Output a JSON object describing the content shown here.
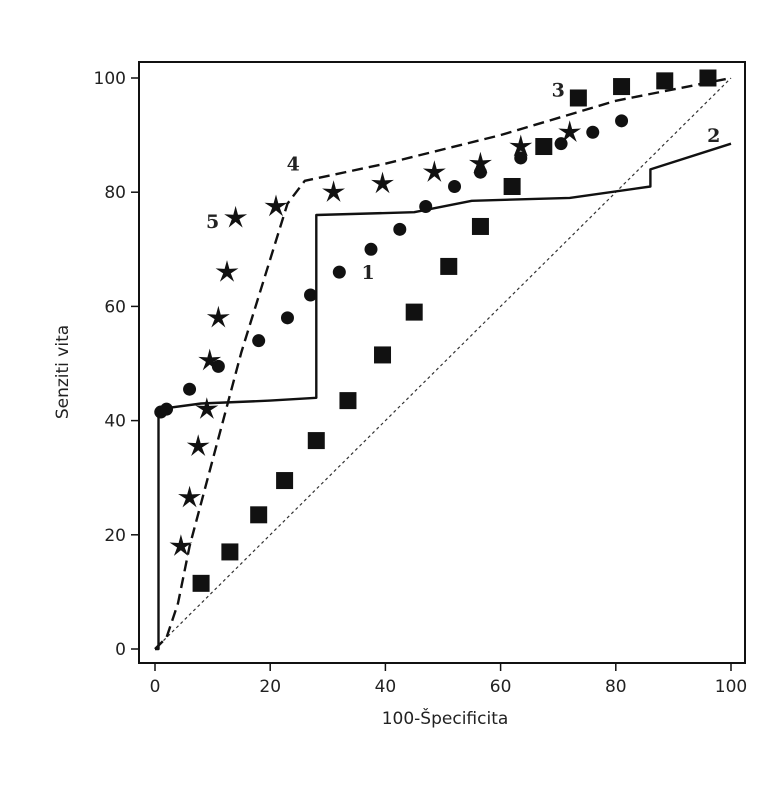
{
  "chart_data": {
    "type": "line",
    "xlabel": "100-Špecificita",
    "ylabel": "Senziti vita",
    "xlim": [
      0,
      100
    ],
    "ylim": [
      0,
      100
    ],
    "x_ticks": [
      "0",
      "20",
      "40",
      "60",
      "80",
      "100"
    ],
    "y_ticks": [
      "0",
      "20",
      "40",
      "60",
      "80",
      "100"
    ],
    "grid": false,
    "legend": "none",
    "reference_line": {
      "style": "dotted",
      "points": [
        [
          0,
          0
        ],
        [
          100,
          100
        ]
      ]
    },
    "series": [
      {
        "label": "1",
        "marker": "circle",
        "label_at": [
          37,
          66
        ],
        "points": [
          [
            1,
            41.5
          ],
          [
            2,
            42
          ],
          [
            6,
            45.5
          ],
          [
            11,
            49.5
          ],
          [
            18,
            54
          ],
          [
            23,
            58
          ],
          [
            27,
            62
          ],
          [
            32,
            66
          ],
          [
            37.5,
            70
          ],
          [
            42.5,
            73.5
          ],
          [
            47,
            77.5
          ],
          [
            52,
            81
          ],
          [
            56.5,
            83.5
          ],
          [
            63.5,
            86
          ],
          [
            67.5,
            88
          ],
          [
            70.5,
            88.5
          ],
          [
            76,
            90.5
          ],
          [
            81,
            92.5
          ]
        ]
      },
      {
        "label": "2",
        "line": "solid",
        "label_at": [
          97,
          90
        ],
        "points": [
          [
            0,
            0
          ],
          [
            0.6,
            0
          ],
          [
            0.6,
            42
          ],
          [
            8,
            43
          ],
          [
            20,
            43.5
          ],
          [
            28,
            44
          ],
          [
            28,
            76
          ],
          [
            45,
            76.5
          ],
          [
            55,
            78.5
          ],
          [
            72,
            79
          ],
          [
            86,
            81
          ],
          [
            86,
            84
          ],
          [
            100,
            88.5
          ]
        ]
      },
      {
        "label": "3",
        "marker": "square",
        "label_at": [
          70,
          98
        ],
        "points": [
          [
            8,
            11.5
          ],
          [
            13,
            17
          ],
          [
            18,
            23.5
          ],
          [
            22.5,
            29.5
          ],
          [
            28,
            36.5
          ],
          [
            33.5,
            43.5
          ],
          [
            39.5,
            51.5
          ],
          [
            45,
            59
          ],
          [
            51,
            67
          ],
          [
            56.5,
            74
          ],
          [
            62,
            81
          ],
          [
            67.5,
            88
          ],
          [
            73.5,
            96.5
          ],
          [
            81,
            98.5
          ],
          [
            88.5,
            99.5
          ],
          [
            96,
            100
          ]
        ]
      },
      {
        "label": "4",
        "line": "dashed",
        "label_at": [
          24,
          85
        ],
        "points": [
          [
            0,
            0
          ],
          [
            2,
            2
          ],
          [
            4,
            8
          ],
          [
            6,
            18
          ],
          [
            15,
            52
          ],
          [
            23,
            78
          ],
          [
            26,
            82
          ],
          [
            40,
            85
          ],
          [
            60,
            90
          ],
          [
            80,
            96
          ],
          [
            100,
            100
          ]
        ]
      },
      {
        "label": "5",
        "marker": "star",
        "label_at": [
          10,
          75
        ],
        "points": [
          [
            4.5,
            18
          ],
          [
            6,
            26.5
          ],
          [
            7.5,
            35.5
          ],
          [
            9,
            42
          ],
          [
            9.5,
            50.5
          ],
          [
            11,
            58
          ],
          [
            12.5,
            66
          ],
          [
            14,
            75.5
          ],
          [
            21,
            77.5
          ],
          [
            31,
            80
          ],
          [
            39.5,
            81.5
          ],
          [
            48.5,
            83.5
          ],
          [
            56.5,
            85
          ],
          [
            63.5,
            88
          ],
          [
            72,
            90.5
          ]
        ]
      }
    ]
  }
}
